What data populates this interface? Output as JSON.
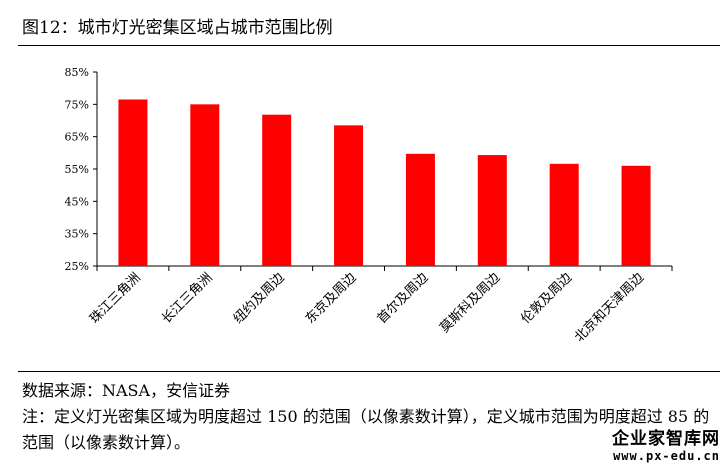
{
  "figure": {
    "title": "图12：城市灯光密集区域占城市范围比例",
    "source": "数据来源：NASA，安信证券",
    "note": "注：定义灯光密集区域为明度超过 150 的范围（以像素数计算），定义城市范围为明度超过 85 的范围（以像素数计算）。"
  },
  "watermark": {
    "name": "企业家智库网",
    "url": "www.px-edu.cn"
  },
  "chart_data": {
    "type": "bar",
    "categories": [
      "珠江三角洲",
      "长江三角洲",
      "纽约及周边",
      "东京及周边",
      "首尔及周边",
      "莫斯科及周边",
      "伦敦及周边",
      "北京和天津周边"
    ],
    "values": [
      76.5,
      75,
      71.8,
      68.5,
      59.7,
      59.3,
      56.6,
      56
    ],
    "ylim": [
      25,
      85
    ],
    "yticks": [
      "25%",
      "35%",
      "45%",
      "55%",
      "65%",
      "75%",
      "85%"
    ],
    "ytick_values": [
      25,
      35,
      45,
      55,
      65,
      75,
      85
    ],
    "bar_color": "#ff0000",
    "grid": false,
    "legend": "none"
  }
}
